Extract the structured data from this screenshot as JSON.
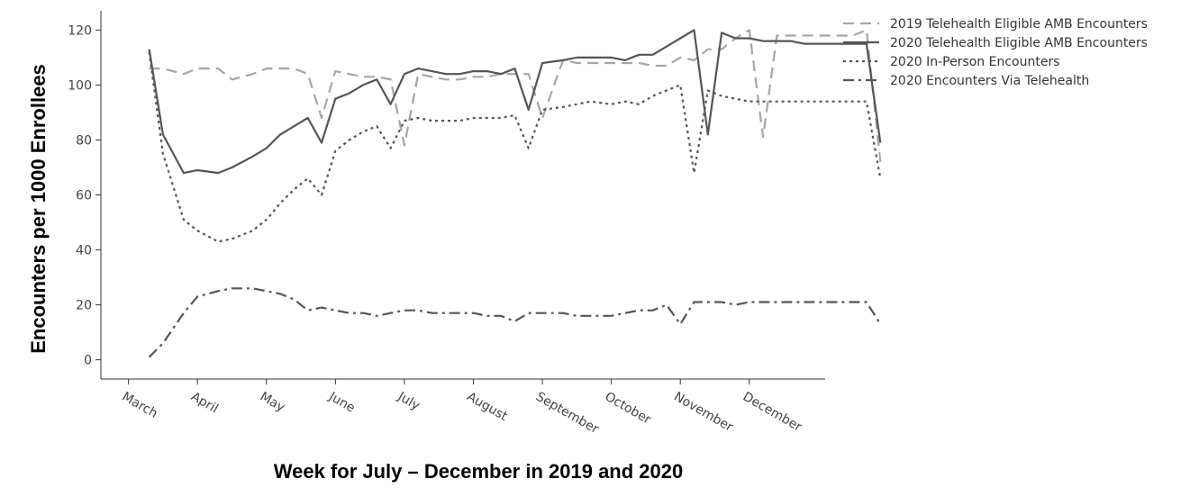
{
  "chart_data": {
    "type": "line",
    "title": "",
    "xlabel": "Week for July – December in 2019 and 2020",
    "ylabel": "Encounters per 1000 Enrollees",
    "ylim": [
      -7,
      127
    ],
    "y_ticks": [
      0,
      20,
      40,
      60,
      80,
      100,
      120
    ],
    "x_tick_labels": [
      "March",
      "April",
      "May",
      "June",
      "July",
      "August",
      "September",
      "October",
      "November",
      "December"
    ],
    "x_tick_weeks": [
      -3,
      7,
      17,
      27,
      37,
      47,
      57,
      67,
      77,
      87
    ],
    "x_range_weeks": [
      -7,
      98
    ],
    "legend_position": "top-right",
    "grid": false,
    "series": [
      {
        "name": "2019 Telehealth Eligible AMB Encounters",
        "style": "dashed",
        "color": "#a6a6a6",
        "x": [
          0,
          2,
          5,
          7,
          10,
          12,
          15,
          17,
          19,
          21,
          23,
          25,
          27,
          29,
          31,
          33,
          35,
          37,
          39,
          41,
          43,
          45,
          47,
          49,
          51,
          53,
          55,
          57,
          60,
          62,
          64,
          67,
          69,
          71,
          73,
          75,
          77,
          79,
          81,
          83,
          85,
          87,
          89,
          91,
          93,
          95,
          97,
          99,
          102,
          104,
          106
        ],
        "values": [
          106,
          106,
          104,
          106,
          106,
          102,
          104,
          106,
          106,
          106,
          104,
          88,
          105,
          104,
          103,
          103,
          102,
          78,
          104,
          103,
          102,
          102,
          103,
          103,
          104,
          104,
          104,
          88,
          109,
          108,
          108,
          108,
          108,
          108,
          107,
          107,
          110,
          109,
          113,
          113,
          117,
          120,
          81,
          118,
          118,
          118,
          118,
          118,
          118,
          120,
          72
        ]
      },
      {
        "name": "2020 Telehealth Eligible AMB Encounters",
        "style": "solid",
        "color": "#555555",
        "x": [
          0,
          2,
          5,
          7,
          10,
          12,
          15,
          17,
          19,
          21,
          23,
          25,
          27,
          29,
          31,
          33,
          35,
          37,
          39,
          41,
          43,
          45,
          47,
          49,
          51,
          53,
          55,
          57,
          60,
          62,
          64,
          67,
          69,
          71,
          73,
          75,
          77,
          79,
          81,
          83,
          85,
          87,
          89,
          91,
          93,
          95,
          97,
          99,
          102,
          104,
          106
        ],
        "values": [
          113,
          82,
          68,
          69,
          68,
          70,
          74,
          77,
          82,
          85,
          88,
          79,
          95,
          97,
          100,
          102,
          93,
          104,
          106,
          105,
          104,
          104,
          105,
          105,
          104,
          106,
          91,
          108,
          109,
          110,
          110,
          110,
          109,
          111,
          111,
          114,
          117,
          120,
          82,
          119,
          117,
          117,
          116,
          116,
          116,
          115,
          115,
          115,
          115,
          115,
          79
        ]
      },
      {
        "name": "2020 In-Person Encounters",
        "style": "dotted",
        "color": "#555555",
        "x": [
          0,
          2,
          5,
          7,
          10,
          12,
          15,
          17,
          19,
          21,
          23,
          25,
          27,
          29,
          31,
          33,
          35,
          37,
          39,
          41,
          43,
          45,
          47,
          49,
          51,
          53,
          55,
          57,
          60,
          62,
          64,
          67,
          69,
          71,
          73,
          75,
          77,
          79,
          81,
          83,
          85,
          87,
          89,
          91,
          93,
          95,
          97,
          99,
          102,
          104,
          106
        ],
        "values": [
          112,
          75,
          51,
          47,
          43,
          44,
          47,
          51,
          57,
          62,
          66,
          60,
          76,
          80,
          83,
          85,
          77,
          87,
          88,
          87,
          87,
          87,
          88,
          88,
          88,
          89,
          77,
          91,
          92,
          93,
          94,
          93,
          94,
          93,
          96,
          98,
          100,
          68,
          98,
          96,
          95,
          94,
          94,
          94,
          94,
          94,
          94,
          94,
          94,
          94,
          66
        ]
      },
      {
        "name": "2020 Encounters Via Telehealth",
        "style": "dashdot",
        "color": "#555555",
        "x": [
          0,
          2,
          5,
          7,
          10,
          12,
          15,
          17,
          19,
          21,
          23,
          25,
          27,
          29,
          31,
          33,
          35,
          37,
          39,
          41,
          43,
          45,
          47,
          49,
          51,
          53,
          55,
          57,
          60,
          62,
          64,
          67,
          69,
          71,
          73,
          75,
          77,
          79,
          81,
          83,
          85,
          87,
          89,
          91,
          93,
          95,
          97,
          99,
          102,
          104,
          106
        ],
        "values": [
          1,
          6,
          17,
          23,
          25,
          26,
          26,
          25,
          24,
          22,
          18,
          19,
          18,
          17,
          17,
          16,
          17,
          18,
          18,
          17,
          17,
          17,
          17,
          16,
          16,
          14,
          17,
          17,
          17,
          16,
          16,
          16,
          17,
          18,
          18,
          20,
          13,
          21,
          21,
          21,
          20,
          21,
          21,
          21,
          21,
          21,
          21,
          21,
          21,
          21,
          13
        ]
      }
    ]
  }
}
